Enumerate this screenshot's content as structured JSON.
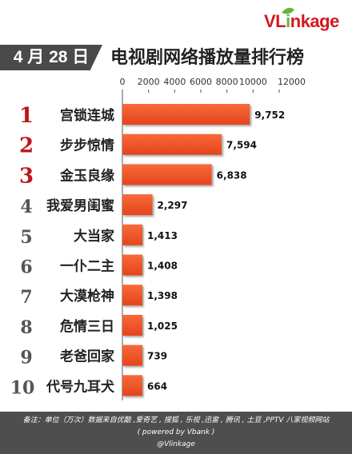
{
  "brand": {
    "logo_text_red": "VL",
    "logo_text_green": "i",
    "logo_text_rest": "nkage"
  },
  "header": {
    "date": "4 月 28 日"
  },
  "footer": {
    "note": "备注：单位（万次）数据来自优酷 ,爱奇艺 , 搜狐 , 乐视 ,迅雷 , 腾讯 , 土豆 ,PPTV 八家视频网站",
    "powered": "( powered by Vbank )",
    "credit": "@Vlinkage"
  },
  "colors": {
    "bar": "#f25b2e",
    "bar_dark": "#d9401a",
    "rank": "#c0141b",
    "axis": "#333333"
  },
  "chart_data": {
    "type": "bar",
    "orientation": "horizontal",
    "title": "电视剧网络播放量排行榜",
    "ranks": [
      "1",
      "2",
      "3",
      "4",
      "5",
      "6",
      "7",
      "8",
      "9",
      "10"
    ],
    "categories": [
      "宫锁连城",
      "步步惊情",
      "金玉良缘",
      "我爱男闺蜜",
      "大当家",
      "一仆二主",
      "大漠枪神",
      "危情三日",
      "老爸回家",
      "代号九耳犬"
    ],
    "values": [
      9752,
      7594,
      6838,
      2297,
      1413,
      1408,
      1398,
      1025,
      739,
      664
    ],
    "value_labels": [
      "9,752",
      "7,594",
      "6,838",
      "2,297",
      "1,413",
      "1,408",
      "1,398",
      "1,025",
      "739",
      "664"
    ],
    "xticks": [
      "0",
      "2000",
      "4000",
      "6000",
      "8000",
      "10000",
      "12000"
    ],
    "xlim": [
      0,
      12000
    ],
    "axis_position": "top",
    "grid": false
  }
}
